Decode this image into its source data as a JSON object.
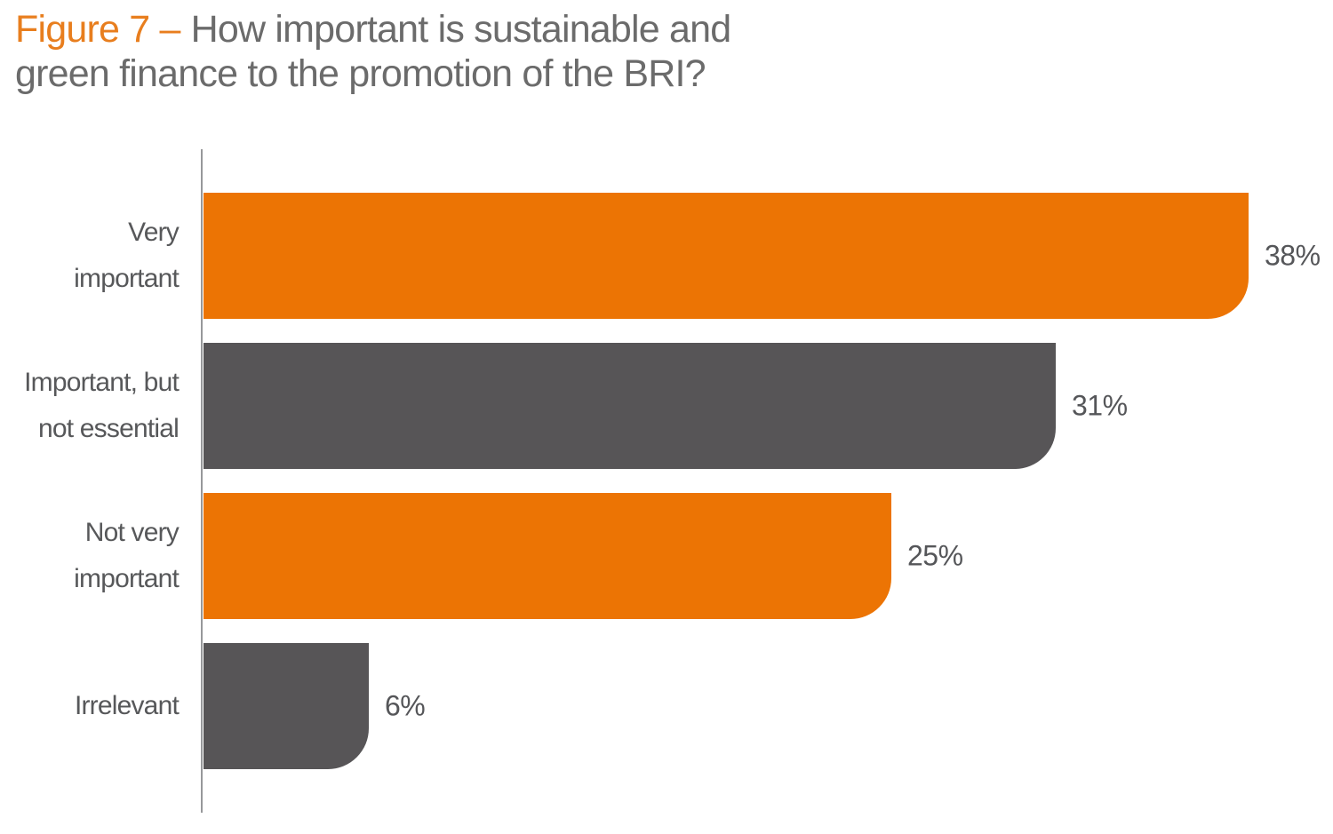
{
  "title": {
    "orange_part": "Figure 7 –",
    "line1": "How important is sustainable and",
    "line2": "green finance to the promotion of the BRI?",
    "full": "Figure 7 – How important is sustainable and green finance to the promotion of the BRI?"
  },
  "colors": {
    "bar_orange": "#ec7404",
    "bar_gray": "#575557",
    "title_orange": "#e87e1e",
    "title_gray": "#6b6b6b",
    "label_gray": "#57585a",
    "axis_gray": "#97989a",
    "background": "#ffffff"
  },
  "chart_data": {
    "type": "bar",
    "orientation": "horizontal",
    "title": "Figure 7 – How important is sustainable and green finance to the promotion of the BRI?",
    "categories": [
      "Very important",
      "Important, but not essential",
      "Not very important",
      "Irrelevant"
    ],
    "category_label_lines": [
      [
        "Very",
        "important"
      ],
      [
        "Important, but",
        "not essential"
      ],
      [
        "Not very",
        "important"
      ],
      [
        "Irrelevant"
      ]
    ],
    "values": [
      38,
      31,
      25,
      6
    ],
    "value_labels": [
      "38%",
      "31%",
      "25%",
      "6%"
    ],
    "bar_colors": [
      "#ec7404",
      "#575557",
      "#ec7404",
      "#575557"
    ],
    "xlabel": "",
    "ylabel": "",
    "xlim": [
      0,
      41
    ],
    "grid": false,
    "legend": false,
    "notes": "single vertical axis line on left; bars have large rounded bottom-right corner; value labels to the right of each bar"
  }
}
